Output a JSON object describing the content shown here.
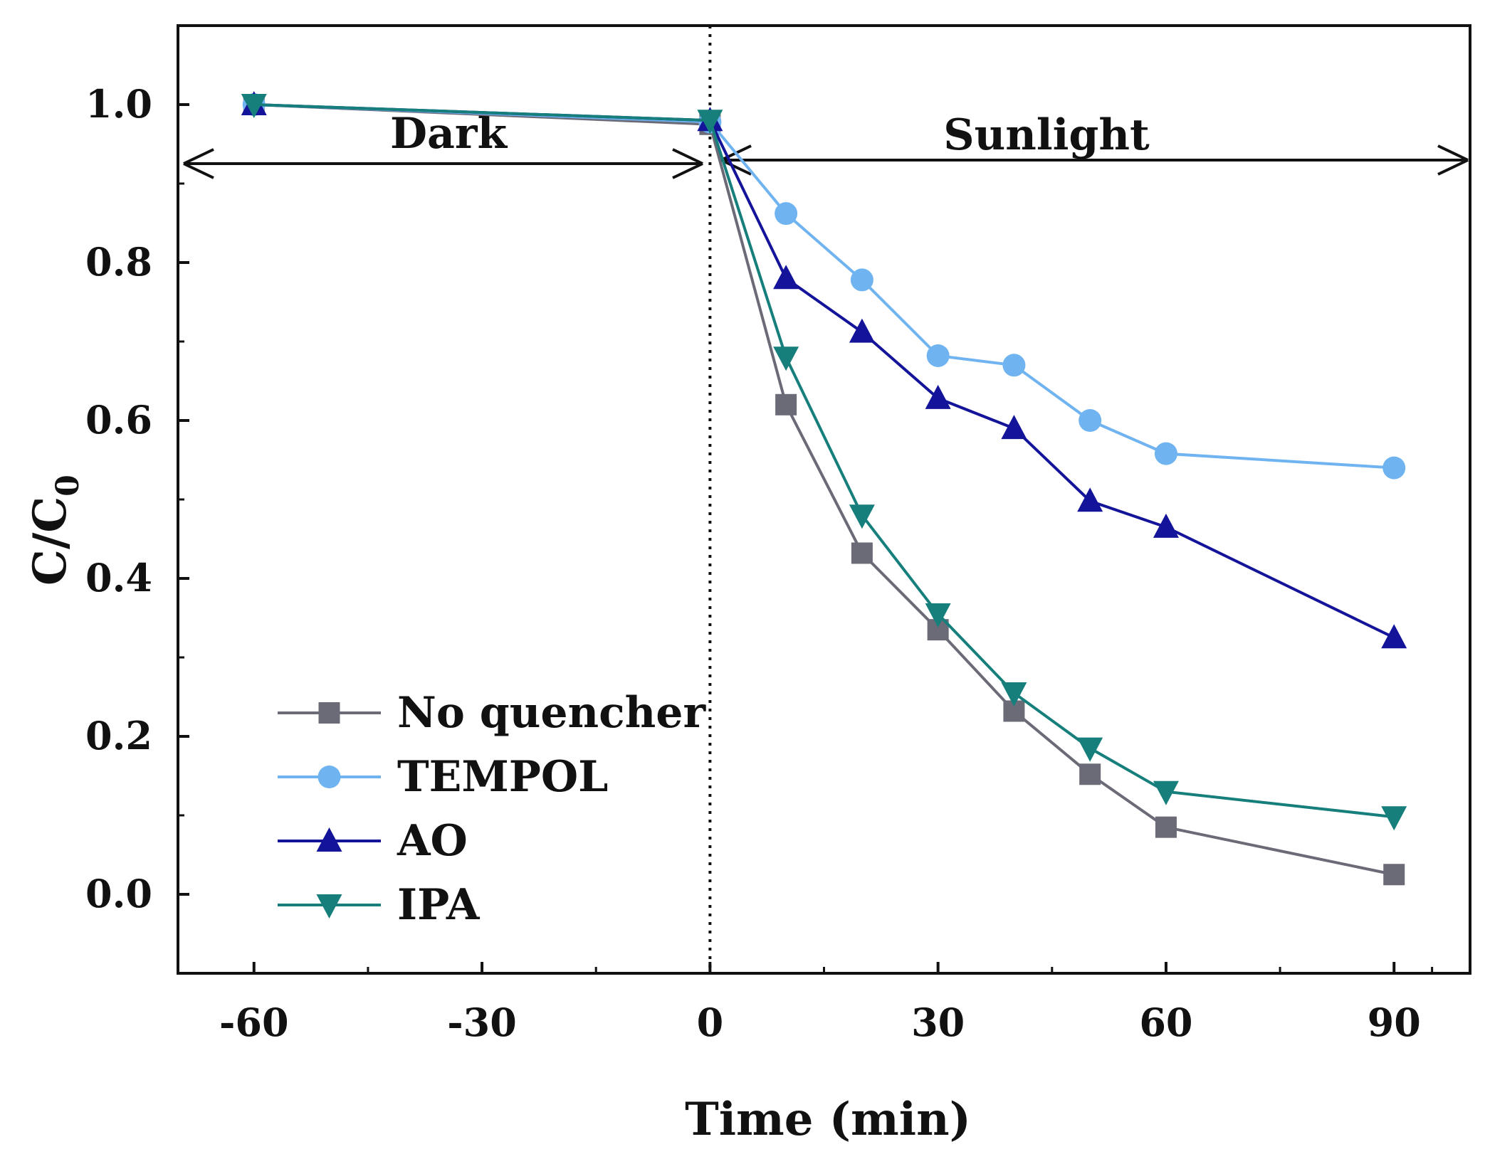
{
  "chart_data": {
    "type": "line",
    "title": "",
    "xlabel": "Time (min)",
    "ylabel_main": "C/C",
    "ylabel_sub": "0",
    "xlim": [
      -70,
      100
    ],
    "ylim": [
      -0.1,
      1.1
    ],
    "xticks": [
      -60,
      -30,
      0,
      30,
      60,
      90
    ],
    "xtick_labels": [
      "-60",
      "-30",
      "0",
      "30",
      "60",
      "90"
    ],
    "yticks": [
      0.0,
      0.2,
      0.4,
      0.6,
      0.8,
      1.0
    ],
    "ytick_labels": [
      "0.0",
      "0.2",
      "0.4",
      "0.6",
      "0.8",
      "1.0"
    ],
    "x": [
      -60,
      0,
      10,
      20,
      30,
      40,
      50,
      60,
      90
    ],
    "series": [
      {
        "name": "No quencher",
        "color": "#6b6b78",
        "marker": "square",
        "values": [
          1.0,
          0.975,
          0.62,
          0.432,
          0.335,
          0.232,
          0.152,
          0.085,
          0.025
        ]
      },
      {
        "name": "TEMPOL",
        "color": "#6fb3f0",
        "marker": "circle",
        "values": [
          1.0,
          0.978,
          0.862,
          0.778,
          0.682,
          0.67,
          0.6,
          0.558,
          0.54
        ]
      },
      {
        "name": "AO",
        "color": "#14149a",
        "marker": "triangle-up",
        "values": [
          1.0,
          0.98,
          0.78,
          0.712,
          0.628,
          0.59,
          0.498,
          0.465,
          0.325
        ]
      },
      {
        "name": "IPA",
        "color": "#167f7c",
        "marker": "triangle-down",
        "values": [
          1.0,
          0.98,
          0.68,
          0.48,
          0.355,
          0.255,
          0.185,
          0.13,
          0.098
        ]
      }
    ],
    "annotations": {
      "dark_label": "Dark",
      "sunlight_label": "Sunlight",
      "divider_x": 0
    },
    "legend_position": "bottom-left",
    "grid": false
  }
}
